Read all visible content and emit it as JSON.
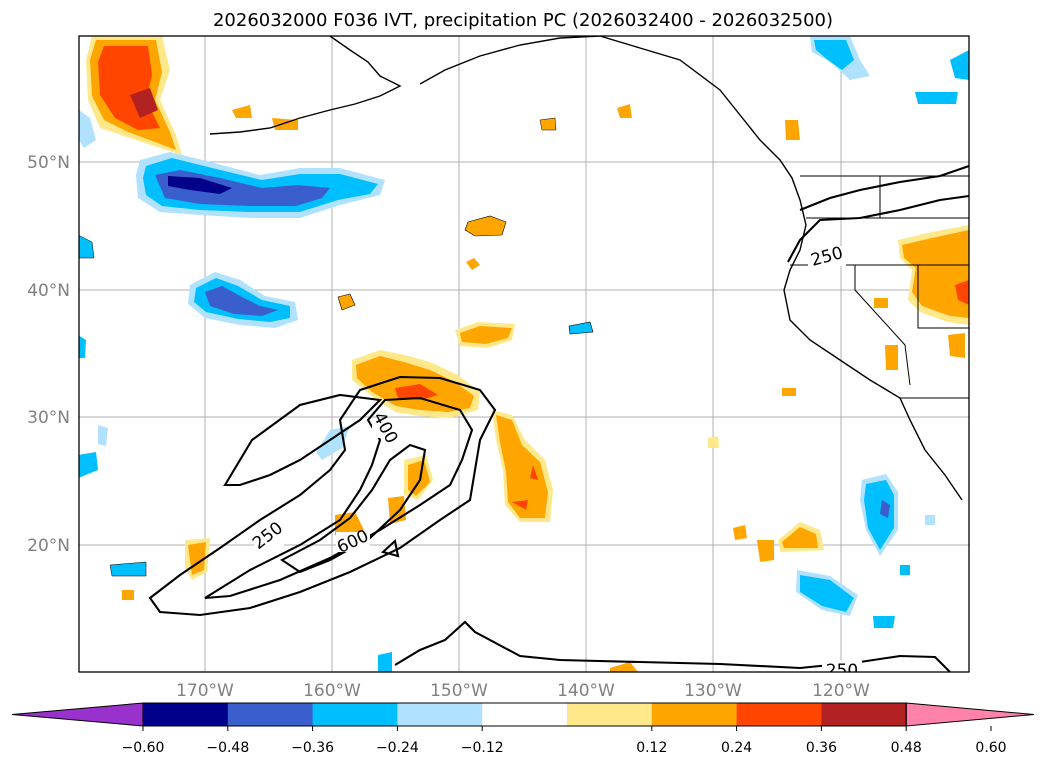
{
  "title": "2026032000 F036 IVT, precipitation PC (2026032400 - 2026032500)",
  "map": {
    "region": "North Pacific / US West Coast",
    "lon_range": [
      180,
      -110
    ],
    "lat_range": [
      10,
      60
    ],
    "grid": true,
    "lat_ticks": [
      "50°N",
      "40°N",
      "30°N",
      "20°N"
    ],
    "lon_ticks": [
      "170°W",
      "160°W",
      "150°W",
      "140°W",
      "130°W",
      "120°W"
    ],
    "ivt_contour_labels": [
      "400",
      "250",
      "600",
      "250",
      "250"
    ],
    "ivt_contour_levels": [
      250,
      400,
      600
    ],
    "contour_color": "#000000"
  },
  "colorbar": {
    "ticks": [
      "−0.60",
      "−0.48",
      "−0.36",
      "−0.24",
      "−0.12",
      "0.12",
      "0.24",
      "0.36",
      "0.48",
      "0.60"
    ],
    "colors": [
      "#9932cc",
      "#00008b",
      "#3a5fcd",
      "#00bfff",
      "#b0e2ff",
      "#ffffff",
      "#ffe88a",
      "#ffa500",
      "#ff4500",
      "#b22222",
      "#ff82ab"
    ],
    "extend": "both"
  },
  "fill_colors": {
    "neg_light": "#b0e2ff",
    "neg_mid": "#00bfff",
    "neg_strong": "#3a5fcd",
    "neg_max": "#00008b",
    "pos_light": "#ffe88a",
    "pos_mid": "#ffa500",
    "pos_strong": "#ff4500",
    "pos_max": "#b22222"
  }
}
